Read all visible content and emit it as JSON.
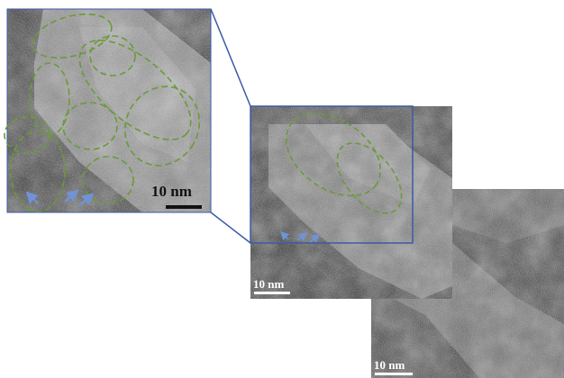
{
  "colors": {
    "background": "#ffffff",
    "zoom_box": "#3a5aa8",
    "grain_outline": "#6a9a3a",
    "arrow": "#6f93d6",
    "micrograph_dark": "#2e2e2e",
    "micrograph_light": "#9a9a9a"
  },
  "panels": {
    "inset": {
      "scale_label": "10 nm"
    },
    "middle": {
      "scale_label": "10 nm"
    },
    "bottom": {
      "scale_label": "10 nm"
    }
  },
  "icons": [
    "arrow-icon"
  ]
}
